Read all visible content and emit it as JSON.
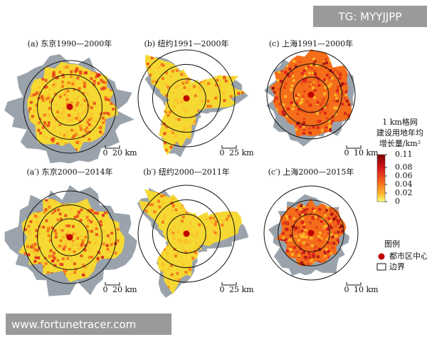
{
  "panels": [
    {
      "title": "(a) 东京1990—2000年",
      "scale": [
        "0",
        "20 km"
      ]
    },
    {
      "title": "(b) 纽约1991—2000年",
      "scale": [
        "0",
        "25 km"
      ]
    },
    {
      "title": "(c) 上海1991—2000年",
      "scale": [
        "0",
        "10 km"
      ]
    },
    {
      "title": "(a′) 东京2000—2014年",
      "scale": [
        "0",
        "20 km"
      ]
    },
    {
      "title": "(b′) 纽约2000—2011年",
      "scale": [
        "0",
        "25 km"
      ]
    },
    {
      "title": "(c′) 上海2000—2015年",
      "scale": [
        "0",
        "10 km"
      ]
    }
  ],
  "legend": {
    "title": [
      "1 km格网",
      "建设用地年均",
      "增长量/km²"
    ],
    "ticks": [
      0.11,
      0.08,
      0.06,
      0.04,
      0.02,
      0
    ],
    "heading": "图例",
    "items": [
      "都市区中心",
      "边界"
    ]
  },
  "watermarks": [
    "TG: MYYJJPP",
    "www.fortunetracer.com"
  ]
}
